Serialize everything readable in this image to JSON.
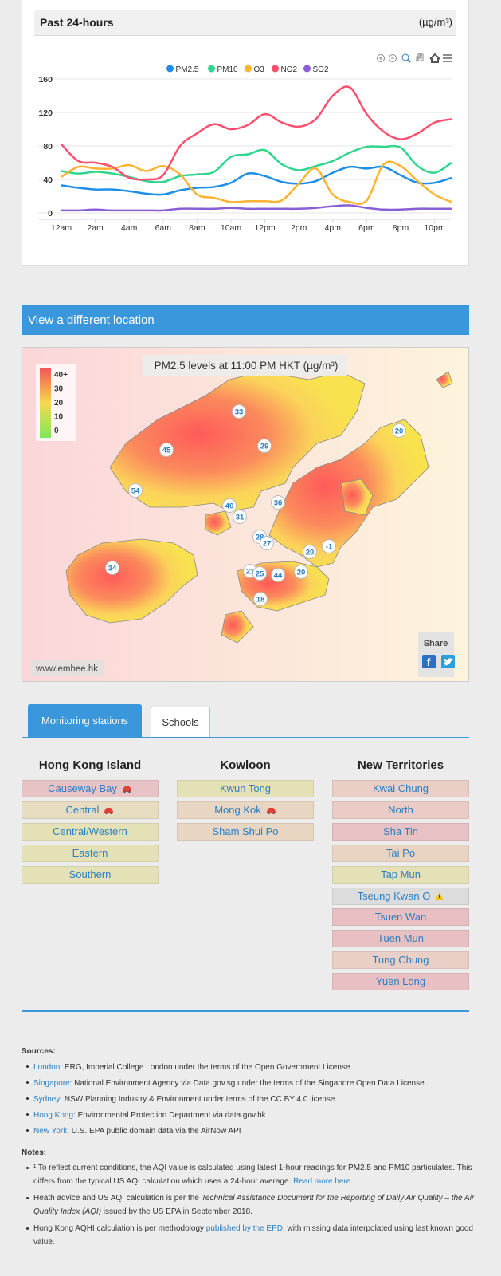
{
  "panel": {
    "title": "Past 24-hours",
    "unit": "(µg/m³)"
  },
  "chart_data": {
    "type": "line",
    "categories": [
      "12am",
      null,
      "2am",
      null,
      "4am",
      null,
      "6am",
      null,
      "8am",
      null,
      "10am",
      null,
      "12pm",
      null,
      "2pm",
      null,
      "4pm",
      null,
      "6pm",
      null,
      "8pm",
      null,
      "10pm",
      null
    ],
    "series": [
      {
        "name": "PM2.5",
        "color": "#1e8fe8",
        "values": [
          33,
          30,
          28,
          28,
          26,
          23,
          22,
          27,
          30,
          31,
          36,
          47,
          44,
          37,
          35,
          38,
          48,
          55,
          53,
          55,
          45,
          36,
          36,
          42
        ]
      },
      {
        "name": "PM10",
        "color": "#2fd68c",
        "values": [
          50,
          47,
          49,
          47,
          43,
          38,
          37,
          44,
          46,
          49,
          67,
          70,
          75,
          58,
          51,
          56,
          62,
          72,
          79,
          79,
          78,
          56,
          48,
          60
        ]
      },
      {
        "name": "O3",
        "color": "#ffb330",
        "values": [
          43,
          55,
          53,
          53,
          57,
          50,
          56,
          46,
          22,
          18,
          13,
          14,
          14,
          15,
          35,
          53,
          22,
          13,
          15,
          58,
          56,
          38,
          22,
          13
        ]
      },
      {
        "name": "NO2",
        "color": "#ff4f6e",
        "values": [
          82,
          62,
          60,
          55,
          42,
          40,
          45,
          80,
          95,
          106,
          100,
          105,
          118,
          108,
          103,
          112,
          140,
          150,
          118,
          97,
          88,
          95,
          108,
          112
        ]
      },
      {
        "name": "SO2",
        "color": "#8a5fd6",
        "values": [
          3,
          3,
          4,
          3,
          3,
          3,
          3,
          5,
          5,
          5,
          6,
          5,
          5,
          5,
          5,
          6,
          8,
          9,
          6,
          4,
          4,
          5,
          5,
          5
        ]
      }
    ],
    "ylim": [
      0,
      160
    ],
    "yticks": [
      0,
      40,
      80,
      120,
      160
    ],
    "grid": true,
    "legend": "top"
  },
  "location_header": "View a different location",
  "map": {
    "title": "PM2.5 levels at 11:00 PM HKT (µg/m³)",
    "legend": [
      "40+",
      "30",
      "20",
      "10",
      "0"
    ],
    "markers": [
      33,
      45,
      29,
      20,
      54,
      40,
      36,
      31,
      28,
      27,
      20,
      -1,
      34,
      21,
      25,
      44,
      20,
      18
    ],
    "share": "Share",
    "credit": "www.embee.hk"
  },
  "tabs": [
    "Monitoring stations",
    "Schools"
  ],
  "columns": [
    {
      "heading": "Hong Kong Island",
      "stations": [
        {
          "name": "Causeway Bay",
          "color": "#e8c3c6",
          "icon": "car"
        },
        {
          "name": "Central",
          "color": "#e8dcc0",
          "icon": "car"
        },
        {
          "name": "Central/Western",
          "color": "#e5e1b6"
        },
        {
          "name": "Eastern",
          "color": "#e5e1b6"
        },
        {
          "name": "Southern",
          "color": "#e5e1b6"
        }
      ]
    },
    {
      "heading": "Kowloon",
      "stations": [
        {
          "name": "Kwun Tong",
          "color": "#e5e1b6"
        },
        {
          "name": "Mong Kok",
          "color": "#e8d6c2",
          "icon": "car"
        },
        {
          "name": "Sham Shui Po",
          "color": "#e8d6c2"
        }
      ]
    },
    {
      "heading": "New Territories",
      "stations": [
        {
          "name": "Kwai Chung",
          "color": "#eacfc6"
        },
        {
          "name": "North",
          "color": "#eacbc5"
        },
        {
          "name": "Sha Tin",
          "color": "#e8c1c5"
        },
        {
          "name": "Tai Po",
          "color": "#e9d4c2"
        },
        {
          "name": "Tap Mun",
          "color": "#e5e1b6"
        },
        {
          "name": "Tseung Kwan O",
          "color": "#dcdcdc",
          "icon": "warning"
        },
        {
          "name": "Tsuen Wan",
          "color": "#e8c0c4"
        },
        {
          "name": "Tuen Mun",
          "color": "#e8c0c4"
        },
        {
          "name": "Tung Chung",
          "color": "#eacfc6"
        },
        {
          "name": "Yuen Long",
          "color": "#e8c0c4"
        }
      ]
    }
  ],
  "sources": {
    "title": "Sources:",
    "items": [
      {
        "place": "London",
        "text": ": ERG, Imperial College London under the terms of the Open Government License."
      },
      {
        "place": "Singapore",
        "text": ": National Environment Agency via Data.gov.sg under the terms of the Singapore Open Data License"
      },
      {
        "place": "Sydney",
        "text": ": NSW Planning Industry & Environment under terms of the CC BY 4.0 license"
      },
      {
        "place": "Hong Kong",
        "text": ": Environmental Protection Department via data.gov.hk"
      },
      {
        "place": "New York",
        "text": ": U.S. EPA public domain data via the AirNow API"
      }
    ]
  },
  "notes": {
    "title": "Notes:",
    "items": [
      [
        {
          "text": "¹ To reflect current conditions, the AQI value is calculated using latest 1-hour readings for PM2.5 and PM10 particulates. This differs from the typical US AQI calculation which uses a 24-hour average. ",
          "style": "plain"
        },
        {
          "text": "Read more here.",
          "style": "link"
        }
      ],
      [
        {
          "text": "Heath advice and US AQI calculation is per the ",
          "style": "plain"
        },
        {
          "text": "Technical Assistance Document for the Reporting of Daily Air Quality – the Air Quality Index (AQI)",
          "style": "italic"
        },
        {
          "text": " issued by the US EPA in September 2018.",
          "style": "plain"
        }
      ],
      [
        {
          "text": "Hong Kong AQHI calculation is per methodology ",
          "style": "plain"
        },
        {
          "text": "published by the EPD",
          "style": "link"
        },
        {
          "text": ", with missing data interpolated using last known good value.",
          "style": "plain"
        }
      ]
    ]
  }
}
